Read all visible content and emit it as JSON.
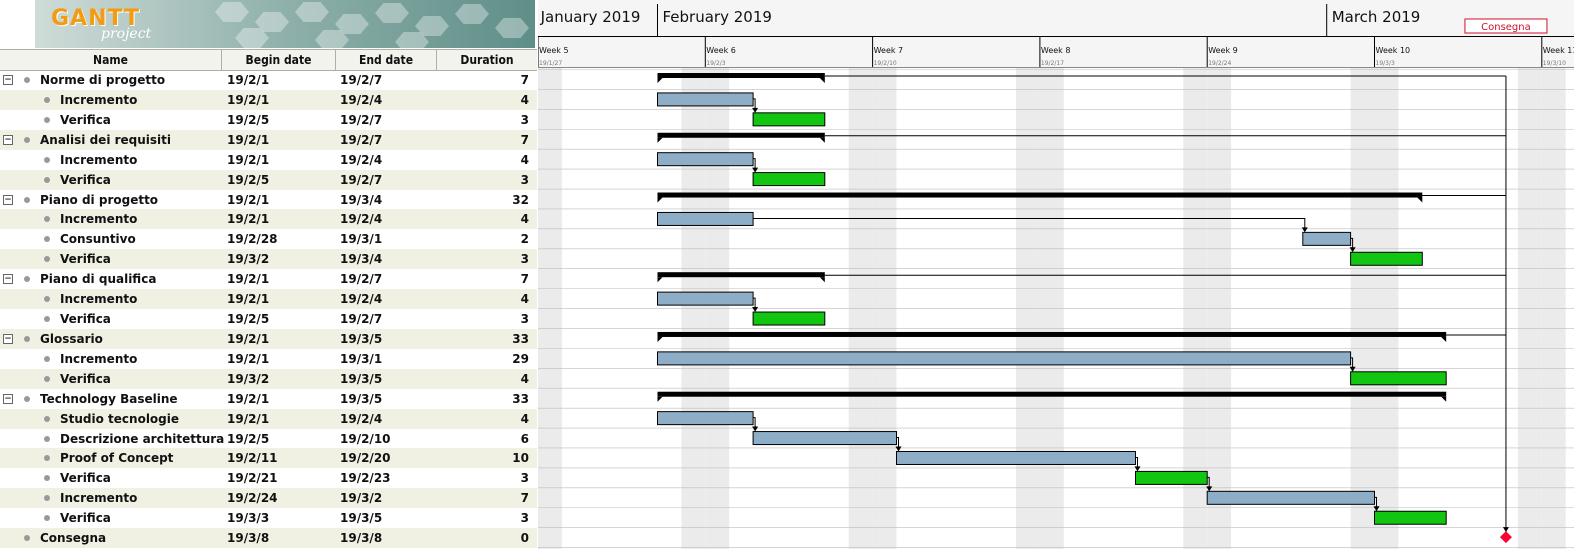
{
  "logo": {
    "brand": "GANTT",
    "sub": "project"
  },
  "columns": {
    "name": "Name",
    "begin": "Begin date",
    "end": "End date",
    "duration": "Duration"
  },
  "timeline": {
    "months": [
      "January 2019",
      "February 2019",
      "March 2019"
    ],
    "weeks": [
      "Week 5",
      "Week 6",
      "Week 7",
      "Week 8",
      "Week 9",
      "Week 10",
      "Week 11"
    ],
    "week_dates": [
      "19/1/27",
      "19/2/3",
      "19/2/10",
      "19/2/17",
      "19/2/24",
      "19/3/3",
      "19/3/10"
    ],
    "milestone_label": "Consegna"
  },
  "colors": {
    "task": "#8eaec8",
    "verify": "#11c511",
    "summary": "#000000",
    "milestone": "#ff0033",
    "weekend": "#ebebeb"
  },
  "tasks": [
    {
      "name": "Norme di progetto",
      "begin": "19/2/1",
      "end": "19/2/7",
      "duration": "7",
      "level": 0,
      "summary": true
    },
    {
      "name": "Incremento",
      "begin": "19/2/1",
      "end": "19/2/4",
      "duration": "4",
      "level": 1
    },
    {
      "name": "Verifica",
      "begin": "19/2/5",
      "end": "19/2/7",
      "duration": "3",
      "level": 1
    },
    {
      "name": "Analisi dei requisiti",
      "begin": "19/2/1",
      "end": "19/2/7",
      "duration": "7",
      "level": 0,
      "summary": true
    },
    {
      "name": "Incremento",
      "begin": "19/2/1",
      "end": "19/2/4",
      "duration": "4",
      "level": 1
    },
    {
      "name": "Verifica",
      "begin": "19/2/5",
      "end": "19/2/7",
      "duration": "3",
      "level": 1
    },
    {
      "name": "Piano di progetto",
      "begin": "19/2/1",
      "end": "19/3/4",
      "duration": "32",
      "level": 0,
      "summary": true
    },
    {
      "name": "Incremento",
      "begin": "19/2/1",
      "end": "19/2/4",
      "duration": "4",
      "level": 1
    },
    {
      "name": "Consuntivo",
      "begin": "19/2/28",
      "end": "19/3/1",
      "duration": "2",
      "level": 1
    },
    {
      "name": "Verifica",
      "begin": "19/3/2",
      "end": "19/3/4",
      "duration": "3",
      "level": 1
    },
    {
      "name": "Piano di qualifica",
      "begin": "19/2/1",
      "end": "19/2/7",
      "duration": "7",
      "level": 0,
      "summary": true
    },
    {
      "name": "Incremento",
      "begin": "19/2/1",
      "end": "19/2/4",
      "duration": "4",
      "level": 1
    },
    {
      "name": "Verifica",
      "begin": "19/2/5",
      "end": "19/2/7",
      "duration": "3",
      "level": 1
    },
    {
      "name": "Glossario",
      "begin": "19/2/1",
      "end": "19/3/5",
      "duration": "33",
      "level": 0,
      "summary": true
    },
    {
      "name": "Incremento",
      "begin": "19/2/1",
      "end": "19/3/1",
      "duration": "29",
      "level": 1
    },
    {
      "name": "Verifica",
      "begin": "19/3/2",
      "end": "19/3/5",
      "duration": "4",
      "level": 1
    },
    {
      "name": "Technology Baseline",
      "begin": "19/2/1",
      "end": "19/3/5",
      "duration": "33",
      "level": 0,
      "summary": true
    },
    {
      "name": "Studio tecnologie",
      "begin": "19/2/1",
      "end": "19/2/4",
      "duration": "4",
      "level": 1
    },
    {
      "name": "Descrizione architettura",
      "begin": "19/2/5",
      "end": "19/2/10",
      "duration": "6",
      "level": 1
    },
    {
      "name": "Proof of Concept",
      "begin": "19/2/11",
      "end": "19/2/20",
      "duration": "10",
      "level": 1
    },
    {
      "name": "Verifica",
      "begin": "19/2/21",
      "end": "19/2/23",
      "duration": "3",
      "level": 1
    },
    {
      "name": "Incremento",
      "begin": "19/2/24",
      "end": "19/3/2",
      "duration": "7",
      "level": 1
    },
    {
      "name": "Verifica",
      "begin": "19/3/3",
      "end": "19/3/5",
      "duration": "3",
      "level": 1
    },
    {
      "name": "Consegna",
      "begin": "19/3/8",
      "end": "19/3/8",
      "duration": "0",
      "level": 0,
      "milestone": true
    }
  ]
}
